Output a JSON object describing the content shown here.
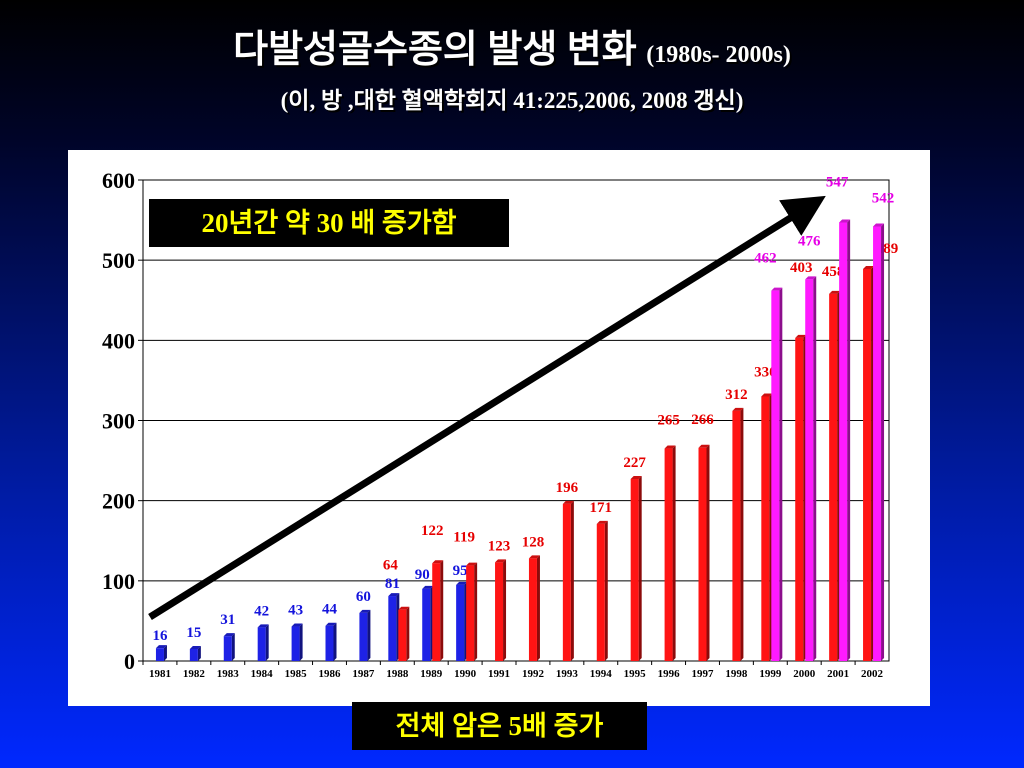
{
  "header": {
    "title": "다발성골수종의 발생 변화",
    "title_suffix": "(1980s- 2000s)",
    "subtitle": "(이, 방 ,대한 혈액학회지 41:225,2006, 2008 갱신)"
  },
  "annotations": {
    "growth_note": "20년간 약 30 배 증가함",
    "overall_note": "전체 암은 5배 증가"
  },
  "colors": {
    "blue_series": "#1e22e6",
    "red_series": "#ff1414",
    "magenta_series": "#ff1aff",
    "blue_label": "#1414dc",
    "red_label": "#e60000",
    "magenta_label": "#e600e6"
  },
  "chart_data": {
    "type": "bar",
    "categories": [
      "1981",
      "1982",
      "1983",
      "1984",
      "1985",
      "1986",
      "1987",
      "1988",
      "1989",
      "1990",
      "1991",
      "1992",
      "1993",
      "1994",
      "1995",
      "1996",
      "1997",
      "1998",
      "1999",
      "2000",
      "2001",
      "2002"
    ],
    "series": [
      {
        "values": [
          16,
          15,
          31,
          42,
          43,
          44,
          60,
          81,
          90,
          95,
          null,
          null,
          null,
          null,
          null,
          null,
          null,
          null,
          null,
          null,
          null,
          null
        ]
      },
      {
        "values": [
          null,
          null,
          null,
          null,
          null,
          null,
          null,
          64,
          122,
          119,
          123,
          128,
          196,
          171,
          227,
          265,
          266,
          312,
          330,
          403,
          458,
          489
        ]
      },
      {
        "values": [
          null,
          null,
          null,
          null,
          null,
          null,
          null,
          null,
          null,
          null,
          null,
          null,
          null,
          null,
          null,
          null,
          null,
          null,
          462,
          476,
          547,
          542
        ]
      }
    ],
    "yticks": [
      "0",
      "100",
      "200",
      "300",
      "400",
      "500",
      "600"
    ],
    "ylim": [
      0,
      600
    ],
    "grid": true
  }
}
